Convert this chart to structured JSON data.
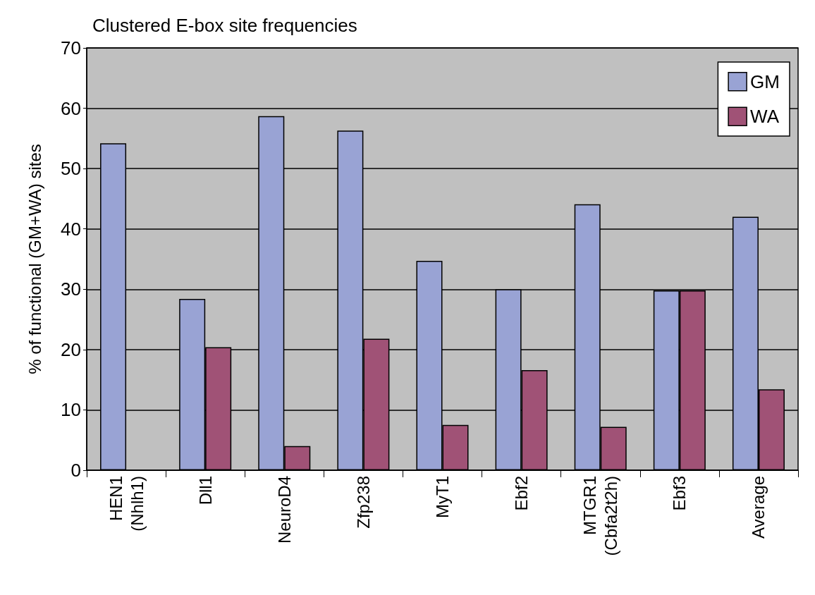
{
  "chart_data": {
    "type": "bar",
    "title": "Clustered E-box site frequencies",
    "ylabel": "% of functional (GM+WA) sites",
    "categories": [
      "HEN1 (Nhlh1)",
      "Dll1",
      "NeuroD4",
      "Zfp238",
      "MyT1",
      "Ebf2",
      "MTGR1 (Cbfa2t2h)",
      "Ebf3",
      "Average"
    ],
    "series": [
      {
        "name": "GM",
        "color": "#99a3d4",
        "values": [
          54.2,
          28.4,
          58.7,
          56.3,
          34.7,
          30.0,
          44.1,
          29.8,
          42.0
        ]
      },
      {
        "name": "WA",
        "color": "#a05276",
        "values": [
          null,
          20.4,
          4.0,
          21.8,
          7.5,
          16.6,
          7.2,
          29.8,
          13.4
        ]
      }
    ],
    "ylim": [
      0,
      70
    ],
    "yticks": [
      0,
      10,
      20,
      30,
      40,
      50,
      60,
      70
    ],
    "grid": "y",
    "legend": "top right"
  }
}
